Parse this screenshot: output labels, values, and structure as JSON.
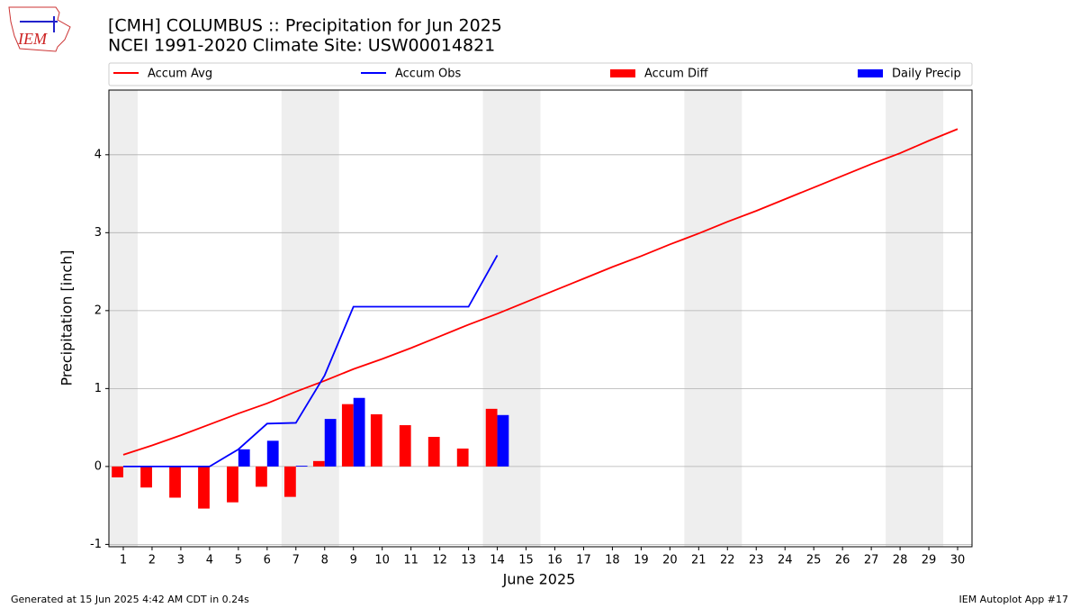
{
  "chart_data": {
    "type": "line",
    "title": "[CMH] COLUMBUS :: Precipitation for Jun 2025",
    "subtitle": "NCEI 1991-2020 Climate Site: USW00014821",
    "xlabel": "June 2025",
    "ylabel": "Precipitation [inch]",
    "footer_left": "Generated at 15 Jun 2025 4:42 AM CDT in 0.24s",
    "footer_right": "IEM Autoplot App #17",
    "logo_text": "IEM",
    "x": [
      1,
      2,
      3,
      4,
      5,
      6,
      7,
      8,
      9,
      10,
      11,
      12,
      13,
      14,
      15,
      16,
      17,
      18,
      19,
      20,
      21,
      22,
      23,
      24,
      25,
      26,
      27,
      28,
      29,
      30
    ],
    "xlim": [
      0.5,
      30.5
    ],
    "xticks": [
      1,
      2,
      3,
      4,
      5,
      6,
      7,
      8,
      9,
      10,
      11,
      12,
      13,
      14,
      15,
      16,
      17,
      18,
      19,
      20,
      21,
      22,
      23,
      24,
      25,
      26,
      27,
      28,
      29,
      30
    ],
    "ylim": [
      -1.03,
      4.83
    ],
    "yticks": [
      -1,
      0,
      1,
      2,
      3,
      4
    ],
    "grid": true,
    "weekend_spans": [
      [
        0.5,
        1.5
      ],
      [
        6.5,
        8.5
      ],
      [
        13.5,
        15.5
      ],
      [
        20.5,
        22.5
      ],
      [
        27.5,
        29.5
      ]
    ],
    "series": [
      {
        "name": "Accum Avg",
        "kind": "line",
        "color": "#ff0000",
        "values": [
          0.15,
          0.27,
          0.4,
          0.54,
          0.68,
          0.81,
          0.96,
          1.1,
          1.25,
          1.38,
          1.52,
          1.67,
          1.82,
          1.96,
          2.11,
          2.26,
          2.41,
          2.56,
          2.7,
          2.85,
          2.99,
          3.14,
          3.28,
          3.43,
          3.58,
          3.73,
          3.88,
          4.02,
          4.18,
          4.33
        ]
      },
      {
        "name": "Accum Obs",
        "kind": "line",
        "color": "#0000ff",
        "values": [
          0,
          0,
          0,
          0,
          0.22,
          0.55,
          0.56,
          1.17,
          2.05,
          2.05,
          2.05,
          2.05,
          2.05,
          2.71,
          null,
          null,
          null,
          null,
          null,
          null,
          null,
          null,
          null,
          null,
          null,
          null,
          null,
          null,
          null,
          null
        ]
      },
      {
        "name": "Accum Diff",
        "kind": "bar",
        "offset": -0.2,
        "width": 0.4,
        "color": "#ff0000",
        "values": [
          -0.14,
          -0.27,
          -0.4,
          -0.54,
          -0.46,
          -0.26,
          -0.39,
          0.07,
          0.8,
          0.67,
          0.53,
          0.38,
          0.23,
          0.74,
          null,
          null,
          null,
          null,
          null,
          null,
          null,
          null,
          null,
          null,
          null,
          null,
          null,
          null,
          null,
          null
        ]
      },
      {
        "name": "Daily Precip",
        "kind": "bar",
        "offset": 0.2,
        "width": 0.4,
        "color": "#0000ff",
        "values": [
          0,
          0,
          0,
          0,
          0.22,
          0.33,
          0.01,
          0.61,
          0.88,
          0,
          0,
          0,
          0,
          0.66,
          null,
          null,
          null,
          null,
          null,
          null,
          null,
          null,
          null,
          null,
          null,
          null,
          null,
          null,
          null,
          null
        ]
      }
    ]
  }
}
